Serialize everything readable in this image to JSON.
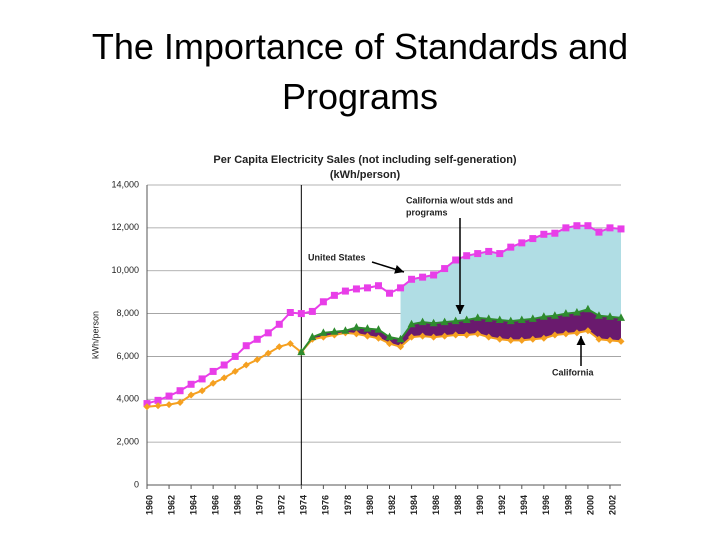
{
  "slide_title": "The Importance of Standards and Programs",
  "chart_data": {
    "type": "line",
    "title": "Per Capita Electricity Sales (not including self-generation)",
    "subtitle": "(kWh/person)",
    "y_label": "kWh/person",
    "x": [
      1960,
      1961,
      1962,
      1963,
      1964,
      1965,
      1966,
      1967,
      1968,
      1969,
      1970,
      1971,
      1972,
      1973,
      1974,
      1975,
      1976,
      1977,
      1978,
      1979,
      1980,
      1981,
      1982,
      1983,
      1984,
      1985,
      1986,
      1987,
      1988,
      1989,
      1990,
      1991,
      1992,
      1993,
      1994,
      1995,
      1996,
      1997,
      1998,
      1999,
      2000,
      2001,
      2002,
      2003
    ],
    "series": [
      {
        "name": "United States",
        "color": "#e83ee8",
        "marker": "square",
        "values": [
          3800,
          3950,
          4150,
          4400,
          4700,
          4950,
          5300,
          5600,
          6000,
          6500,
          6800,
          7100,
          7500,
          8050,
          8000,
          8100,
          8550,
          8850,
          9050,
          9150,
          9200,
          9300,
          8950,
          9200,
          9600,
          9700,
          9800,
          10100,
          10500,
          10700,
          10800,
          10900,
          10800,
          11100,
          11300,
          11500,
          11700,
          11750,
          12000,
          12100,
          12100,
          11800,
          12000,
          11950
        ]
      },
      {
        "name": "California",
        "color": "#f5a020",
        "marker": "diamond",
        "values": [
          3650,
          3700,
          3750,
          3850,
          4200,
          4400,
          4750,
          5000,
          5300,
          5600,
          5850,
          6150,
          6450,
          6600,
          6200,
          6800,
          6900,
          7000,
          7100,
          7050,
          6950,
          6850,
          6600,
          6450,
          6900,
          6950,
          6900,
          6950,
          7000,
          7000,
          7050,
          6900,
          6800,
          6750,
          6750,
          6800,
          6850,
          7000,
          7050,
          7100,
          7200,
          6800,
          6750,
          6700
        ]
      },
      {
        "name": "California w/out stds and programs",
        "color": "#2e8b2e",
        "marker": "triangle",
        "values": [
          null,
          null,
          null,
          null,
          null,
          null,
          null,
          null,
          null,
          null,
          null,
          null,
          null,
          null,
          6200,
          6900,
          7100,
          7150,
          7200,
          7350,
          7300,
          7250,
          6900,
          6800,
          7500,
          7600,
          7550,
          7600,
          7650,
          7700,
          7800,
          7750,
          7700,
          7650,
          7700,
          7750,
          7850,
          7900,
          8000,
          8050,
          8200,
          7900,
          7850,
          7800
        ]
      }
    ],
    "savings_fill_color": "#6a1a6e",
    "gap_fill_color": "#b0dde4",
    "reference_line_x": 1974,
    "annotations": [
      [
        "California w/out stds and",
        "programs"
      ],
      [
        "United States"
      ],
      [
        "California"
      ]
    ],
    "xlim": [
      1960,
      2003
    ],
    "xticks": [
      1960,
      1962,
      1964,
      1966,
      1968,
      1970,
      1972,
      1974,
      1976,
      1978,
      1980,
      1982,
      1984,
      1986,
      1988,
      1990,
      1992,
      1994,
      1996,
      1998,
      2000,
      2002
    ],
    "ylim": [
      0,
      14000
    ],
    "yticks": [
      0,
      {
        "value": 2000,
        "label": "2,000"
      },
      {
        "value": 4000,
        "label": "4,000"
      },
      {
        "value": 6000,
        "label": "6,000"
      },
      {
        "value": 8000,
        "label": "8,000"
      },
      {
        "value": 10000,
        "label": "10,000"
      },
      {
        "value": 12000,
        "label": "12,000"
      },
      {
        "value": 14000,
        "label": "14,000"
      }
    ],
    "grid": true
  }
}
